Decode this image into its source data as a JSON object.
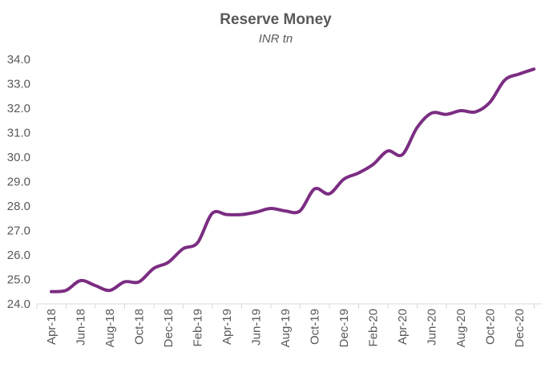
{
  "chart_data": {
    "type": "line",
    "title": "Reserve Money",
    "subtitle": "INR tn",
    "xlabel": "",
    "ylabel": "",
    "ylim": [
      24.0,
      34.0
    ],
    "yticks": [
      "24.0",
      "25.0",
      "26.0",
      "27.0",
      "28.0",
      "29.0",
      "30.0",
      "31.0",
      "32.0",
      "33.0",
      "34.0"
    ],
    "xtick_labels": [
      "Apr-18",
      "Jun-18",
      "Aug-18",
      "Oct-18",
      "Dec-18",
      "Feb-19",
      "Apr-19",
      "Jun-19",
      "Aug-19",
      "Oct-19",
      "Dec-19",
      "Feb-20",
      "Apr-20",
      "Jun-20",
      "Aug-20",
      "Oct-20",
      "Dec-20"
    ],
    "x": [
      "Apr-18",
      "May-18",
      "Jun-18",
      "Jul-18",
      "Aug-18",
      "Sep-18",
      "Oct-18",
      "Nov-18",
      "Dec-18",
      "Jan-19",
      "Feb-19",
      "Mar-19",
      "Apr-19",
      "May-19",
      "Jun-19",
      "Jul-19",
      "Aug-19",
      "Sep-19",
      "Oct-19",
      "Nov-19",
      "Dec-19",
      "Jan-20",
      "Feb-20",
      "Mar-20",
      "Apr-20",
      "May-20",
      "Jun-20",
      "Jul-20",
      "Aug-20",
      "Sep-20",
      "Oct-20",
      "Nov-20",
      "Dec-20",
      "Jan-21"
    ],
    "series": [
      {
        "values": [
          24.5,
          24.55,
          24.95,
          24.75,
          24.55,
          24.9,
          24.9,
          25.45,
          25.7,
          26.25,
          26.5,
          27.7,
          27.65,
          27.65,
          27.75,
          27.9,
          27.8,
          27.8,
          28.7,
          28.5,
          29.1,
          29.35,
          29.7,
          30.25,
          30.1,
          31.2,
          31.8,
          31.75,
          31.9,
          31.85,
          32.25,
          33.15,
          33.4,
          33.6
        ],
        "color": "#7B2D82"
      }
    ],
    "grid": false,
    "legend": "none",
    "axis_color": "#D9D9D9"
  }
}
